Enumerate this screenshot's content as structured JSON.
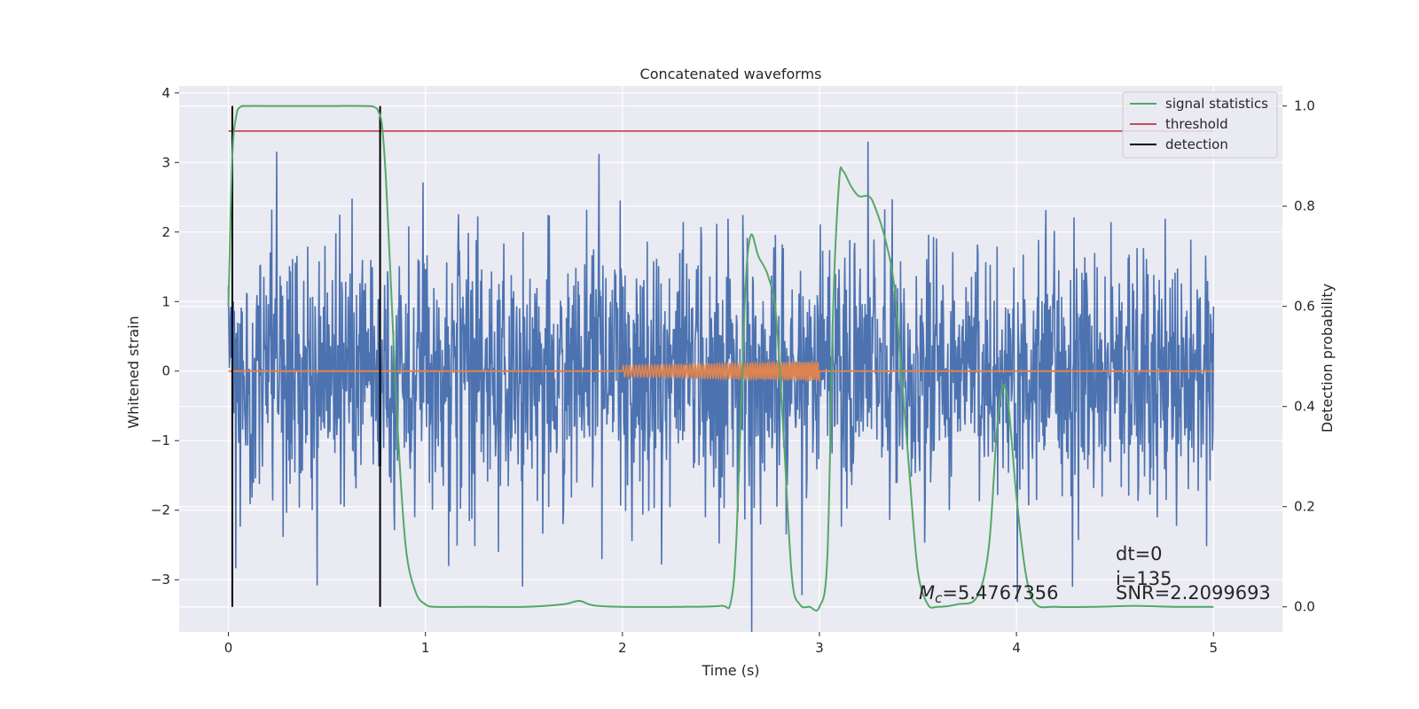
{
  "chart_data": {
    "type": "line",
    "title": "Concatenated waveforms",
    "xlabel": "Time (s)",
    "ylabel": "Whitened strain",
    "ylabel_right": "Detection probability",
    "xlim": [
      -0.25,
      5.35
    ],
    "ylim": [
      -3.75,
      4.1
    ],
    "ylim_right": [
      -0.05,
      1.04
    ],
    "grid": true,
    "x_ticks": [
      0,
      1,
      2,
      3,
      4,
      5
    ],
    "x_tick_labels": [
      "0",
      "1",
      "2",
      "3",
      "4",
      "5"
    ],
    "y_ticks": [
      -3,
      -2,
      -1,
      0,
      1,
      2,
      3,
      4
    ],
    "y_tick_labels": [
      "−3",
      "−2",
      "−1",
      "0",
      "1",
      "2",
      "3",
      "4"
    ],
    "y_right_ticks": [
      0.0,
      0.2,
      0.4,
      0.6,
      0.8,
      1.0
    ],
    "y_right_tick_labels": [
      "0.0",
      "0.2",
      "0.4",
      "0.6",
      "0.8",
      "1.0"
    ],
    "series": [
      {
        "name": "whitened strain",
        "axis": "left",
        "color": "#4c72b0",
        "noise": {
          "x_start": 0.0,
          "x_end": 5.0,
          "samples": 2000,
          "sigma": 0.95,
          "max_abs": 3.75
        }
      },
      {
        "name": "injected waveform",
        "axis": "left",
        "color": "#dd8452",
        "chirp": {
          "x_start": 2.0,
          "x_end": 3.0,
          "amp_start": 0.08,
          "amp_end": 0.13,
          "cycles": 60
        }
      },
      {
        "name": "signal statistics",
        "axis": "right",
        "color": "#55a868",
        "x": [
          0.0,
          0.02,
          0.04,
          0.06,
          0.1,
          0.2,
          0.5,
          0.7,
          0.74,
          0.76,
          0.78,
          0.8,
          0.83,
          0.86,
          0.9,
          0.95,
          1.0,
          1.05,
          1.2,
          1.5,
          1.7,
          1.78,
          1.85,
          2.0,
          2.3,
          2.5,
          2.55,
          2.58,
          2.62,
          2.65,
          2.69,
          2.74,
          2.78,
          2.82,
          2.86,
          2.9,
          2.95,
          3.0,
          3.04,
          3.07,
          3.1,
          3.12,
          3.16,
          3.2,
          3.25,
          3.28,
          3.33,
          3.38,
          3.42,
          3.46,
          3.5,
          3.55,
          3.6,
          3.7,
          3.8,
          3.86,
          3.9,
          3.93,
          3.96,
          4.0,
          4.05,
          4.1,
          4.2,
          4.4,
          4.6,
          4.8,
          5.0
        ],
        "y": [
          0.6,
          0.9,
          0.98,
          0.998,
          1.0,
          1.0,
          1.0,
          1.0,
          0.998,
          0.99,
          0.96,
          0.85,
          0.6,
          0.35,
          0.12,
          0.03,
          0.005,
          0.0,
          0.0,
          0.0,
          0.005,
          0.012,
          0.003,
          0.0,
          0.0,
          0.002,
          0.01,
          0.15,
          0.6,
          0.74,
          0.7,
          0.66,
          0.58,
          0.33,
          0.06,
          0.005,
          0.0,
          0.0,
          0.1,
          0.6,
          0.85,
          0.87,
          0.84,
          0.82,
          0.82,
          0.8,
          0.74,
          0.64,
          0.45,
          0.25,
          0.07,
          0.005,
          0.0,
          0.005,
          0.02,
          0.12,
          0.35,
          0.44,
          0.4,
          0.22,
          0.06,
          0.005,
          0.0,
          0.0,
          0.002,
          0.0,
          0.0
        ]
      },
      {
        "name": "threshold",
        "axis": "right",
        "color": "#c44e52",
        "x": [
          0.0,
          5.0
        ],
        "y": [
          0.95,
          0.95
        ]
      },
      {
        "name": "detection",
        "axis": "right",
        "color": "#000000",
        "vlines": [
          0.02,
          0.77
        ],
        "y_range": [
          0.0,
          1.0
        ]
      }
    ],
    "legend": {
      "position": "top-right",
      "entries": [
        {
          "label": "signal statistics",
          "color": "#55a868"
        },
        {
          "label": "threshold",
          "color": "#c44e52"
        },
        {
          "label": "detection",
          "color": "#000000"
        }
      ]
    },
    "annotations": {
      "chirp_mass_symbol": "M",
      "chirp_mass_sub": "c",
      "chirp_mass_value": "=5.4767356",
      "dt": "dt=0",
      "i": "i=135",
      "snr": "SNR=2.2099693"
    },
    "colors": {
      "background": "#eaeaf2",
      "grid": "#ffffff",
      "text": "#262626"
    }
  }
}
